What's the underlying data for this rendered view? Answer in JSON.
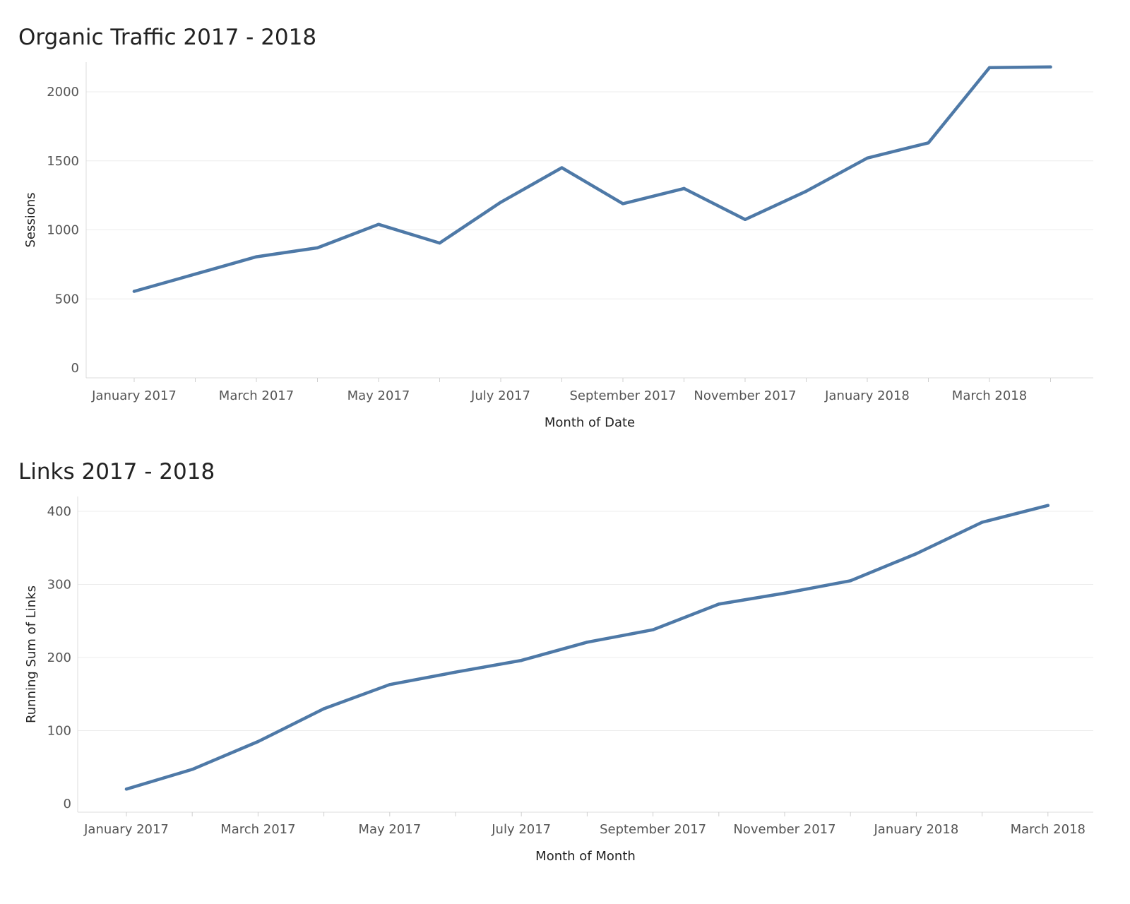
{
  "colors": {
    "series": "#4e79a7"
  },
  "chart_data": [
    {
      "type": "line",
      "title": "Organic Traffic 2017 - 2018",
      "xlabel": "Month of Date",
      "ylabel": "Sessions",
      "grid": true,
      "ylim": [
        0,
        2250
      ],
      "yticks": [
        0,
        500,
        1000,
        1500,
        2000
      ],
      "x": [
        "January 2017",
        "February 2017",
        "March 2017",
        "April 2017",
        "May 2017",
        "June 2017",
        "July 2017",
        "August 2017",
        "September 2017",
        "October 2017",
        "November 2017",
        "December 2017",
        "January 2018",
        "February 2018",
        "March 2018",
        "April 2018"
      ],
      "xtick_labels": [
        "January 2017",
        "March 2017",
        "May 2017",
        "July 2017",
        "September 2017",
        "November 2017",
        "January 2018",
        "March 2018"
      ],
      "series": [
        {
          "values": [
            555,
            680,
            805,
            870,
            1040,
            905,
            1200,
            1450,
            1190,
            1300,
            1075,
            1280,
            1520,
            1630,
            2175,
            2180
          ]
        }
      ]
    },
    {
      "type": "line",
      "title": "Links 2017 - 2018",
      "xlabel": "Month of Month",
      "ylabel": "Running Sum of Links",
      "grid": true,
      "ylim": [
        0,
        430
      ],
      "yticks": [
        0,
        100,
        200,
        300,
        400
      ],
      "x": [
        "January 2017",
        "February 2017",
        "March 2017",
        "April 2017",
        "May 2017",
        "June 2017",
        "July 2017",
        "August 2017",
        "September 2017",
        "October 2017",
        "November 2017",
        "December 2017",
        "January 2018",
        "February 2018",
        "March 2018"
      ],
      "xtick_labels": [
        "January 2017",
        "March 2017",
        "May 2017",
        "July 2017",
        "September 2017",
        "November 2017",
        "January 2018",
        "March 2018"
      ],
      "series": [
        {
          "values": [
            20,
            47,
            85,
            130,
            163,
            180,
            196,
            221,
            238,
            273,
            288,
            305,
            342,
            385,
            408
          ]
        }
      ]
    }
  ]
}
